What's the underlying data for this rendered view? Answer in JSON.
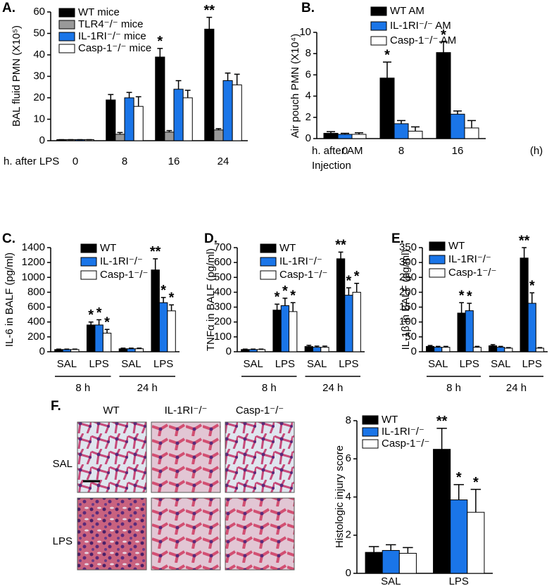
{
  "chart_data": [
    {
      "type": "bar",
      "panel": "A.",
      "ylabel": "BAL fluid PMN (X10⁵)",
      "xlabel": "h. after LPS",
      "categories": [
        "0",
        "8",
        "16",
        "24"
      ],
      "ylim": [
        0,
        60
      ],
      "yticks": [
        0,
        10,
        20,
        30,
        40,
        50,
        60
      ],
      "series": [
        {
          "name": "WT mice",
          "color": "#000000",
          "values": [
            0.5,
            19,
            39,
            52
          ],
          "errors": [
            0,
            2.5,
            4,
            5.5
          ],
          "significance": [
            null,
            null,
            "*",
            "**"
          ]
        },
        {
          "name": "TLR4⁻/⁻ mice",
          "color": "#999999",
          "values": [
            0.5,
            3,
            4,
            5
          ],
          "errors": [
            0,
            0.8,
            0.7,
            0.6
          ],
          "significance": [
            null,
            null,
            null,
            null
          ]
        },
        {
          "name": "IL-1RI⁻/⁻ mice",
          "color": "#1a75e8",
          "values": [
            0.5,
            20,
            24,
            28
          ],
          "errors": [
            0,
            2.5,
            4,
            3.5
          ],
          "significance": [
            null,
            null,
            null,
            null
          ]
        },
        {
          "name": "Casp-1⁻/⁻ mice",
          "color": "#ffffff",
          "values": [
            0.5,
            16,
            20,
            26
          ],
          "errors": [
            0,
            4.5,
            3.5,
            5
          ],
          "significance": [
            null,
            null,
            null,
            null
          ]
        }
      ]
    },
    {
      "type": "bar",
      "panel": "B.",
      "ylabel": "Air pouch PMN (X10⁴)",
      "xlabel": [
        "h. after AM",
        "Injection"
      ],
      "xunit": "(h)",
      "categories": [
        "0",
        "8",
        "16"
      ],
      "ylim": [
        0,
        10
      ],
      "yticks": [
        0,
        2,
        4,
        6,
        8,
        10
      ],
      "series": [
        {
          "name": "WT AM",
          "color": "#000000",
          "values": [
            0.5,
            5.7,
            8.1
          ],
          "errors": [
            0.15,
            1.5,
            1.0
          ],
          "significance": [
            null,
            "*",
            "*"
          ]
        },
        {
          "name": "IL-1RI⁻/⁻ AM",
          "color": "#1a75e8",
          "values": [
            0.4,
            1.4,
            2.3
          ],
          "errors": [
            0.1,
            0.3,
            0.3
          ],
          "significance": [
            null,
            null,
            null
          ]
        },
        {
          "name": "Casp-1⁻/⁻ AM",
          "color": "#ffffff",
          "values": [
            0.4,
            0.7,
            1.0
          ],
          "errors": [
            0.15,
            0.4,
            0.7
          ],
          "significance": [
            null,
            null,
            null
          ]
        }
      ]
    },
    {
      "type": "bar",
      "panel": "C.",
      "ylabel": "IL-6 in BALF (pg/ml)",
      "categories": [
        "SAL",
        "LPS",
        "SAL",
        "LPS"
      ],
      "groups": [
        "8 h",
        "24 h"
      ],
      "ylim": [
        0,
        1400
      ],
      "yticks": [
        0,
        200,
        400,
        600,
        800,
        1000,
        1200,
        1400
      ],
      "series": [
        {
          "name": "WT",
          "color": "#000000",
          "values": [
            30,
            360,
            40,
            1100
          ],
          "errors": [
            5,
            40,
            8,
            150
          ],
          "significance": [
            null,
            "*",
            null,
            "**"
          ]
        },
        {
          "name": "IL-1RI⁻/⁻",
          "color": "#1a75e8",
          "values": [
            30,
            360,
            40,
            660
          ],
          "errors": [
            5,
            70,
            8,
            70
          ],
          "significance": [
            null,
            "*",
            null,
            "*"
          ]
        },
        {
          "name": "Casp-1⁻/⁻",
          "color": "#ffffff",
          "values": [
            30,
            250,
            40,
            550
          ],
          "errors": [
            5,
            50,
            8,
            80
          ],
          "significance": [
            null,
            "*",
            null,
            "*"
          ]
        }
      ]
    },
    {
      "type": "bar",
      "panel": "D.",
      "ylabel": "TNFα in BALF (pg/ml)",
      "categories": [
        "SAL",
        "LPS",
        "SAL",
        "LPS"
      ],
      "groups": [
        "8 h",
        "24 h"
      ],
      "ylim": [
        0,
        700
      ],
      "yticks": [
        0,
        100,
        200,
        300,
        400,
        500,
        600,
        700
      ],
      "series": [
        {
          "name": "WT",
          "color": "#000000",
          "values": [
            15,
            280,
            35,
            625
          ],
          "errors": [
            3,
            40,
            8,
            45
          ],
          "significance": [
            null,
            "*",
            null,
            "**"
          ]
        },
        {
          "name": "IL-1RI⁻/⁻",
          "color": "#1a75e8",
          "values": [
            15,
            310,
            30,
            380
          ],
          "errors": [
            3,
            50,
            8,
            50
          ],
          "significance": [
            null,
            "*",
            null,
            "*"
          ]
        },
        {
          "name": "Casp-1⁻/⁻",
          "color": "#ffffff",
          "values": [
            15,
            270,
            30,
            400
          ],
          "errors": [
            3,
            60,
            8,
            60
          ],
          "significance": [
            null,
            "*",
            null,
            "*"
          ]
        }
      ]
    },
    {
      "type": "bar",
      "panel": "E.",
      "ylabel": "IL-1β in BALF (pg/ml)",
      "categories": [
        "SAL",
        "LPS",
        "SAL",
        "LPS"
      ],
      "groups": [
        "8 h",
        "24 h"
      ],
      "ylim": [
        0,
        350
      ],
      "yticks": [
        0,
        50,
        100,
        150,
        200,
        250,
        300,
        350
      ],
      "series": [
        {
          "name": "WT",
          "color": "#000000",
          "values": [
            18,
            130,
            20,
            315
          ],
          "errors": [
            3,
            35,
            4,
            35
          ],
          "significance": [
            null,
            "*",
            null,
            "**"
          ]
        },
        {
          "name": "IL-1RI⁻/⁻",
          "color": "#1a75e8",
          "values": [
            15,
            138,
            15,
            163
          ],
          "errors": [
            3,
            25,
            3,
            35
          ],
          "significance": [
            null,
            "*",
            null,
            "*"
          ]
        },
        {
          "name": "Casp-1⁻/⁻",
          "color": "#ffffff",
          "values": [
            15,
            15,
            12,
            12
          ],
          "errors": [
            3,
            3,
            2,
            2
          ],
          "significance": [
            null,
            null,
            null,
            null
          ]
        }
      ]
    },
    {
      "type": "bar",
      "ylabel": "Histologic injury score",
      "categories": [
        "SAL",
        "LPS"
      ],
      "ylim": [
        0,
        8
      ],
      "yticks": [
        0,
        2,
        4,
        6,
        8
      ],
      "series": [
        {
          "name": "WT",
          "color": "#000000",
          "values": [
            1.1,
            6.5
          ],
          "errors": [
            0.3,
            1.1
          ],
          "significance": [
            null,
            "**"
          ]
        },
        {
          "name": "IL-1RI⁻/⁻",
          "color": "#1a75e8",
          "values": [
            1.2,
            3.85
          ],
          "errors": [
            0.3,
            0.8
          ],
          "significance": [
            null,
            "*"
          ]
        },
        {
          "name": "Casp-1⁻/⁻",
          "color": "#ffffff",
          "values": [
            1.05,
            3.2
          ],
          "errors": [
            0.3,
            1.2
          ],
          "significance": [
            null,
            "*"
          ]
        }
      ]
    }
  ],
  "histology": {
    "panel": "F.",
    "columns": [
      "WT",
      "IL-1RI⁻/⁻",
      "Casp-1⁻/⁻"
    ],
    "rows": [
      "SAL",
      "LPS"
    ]
  }
}
